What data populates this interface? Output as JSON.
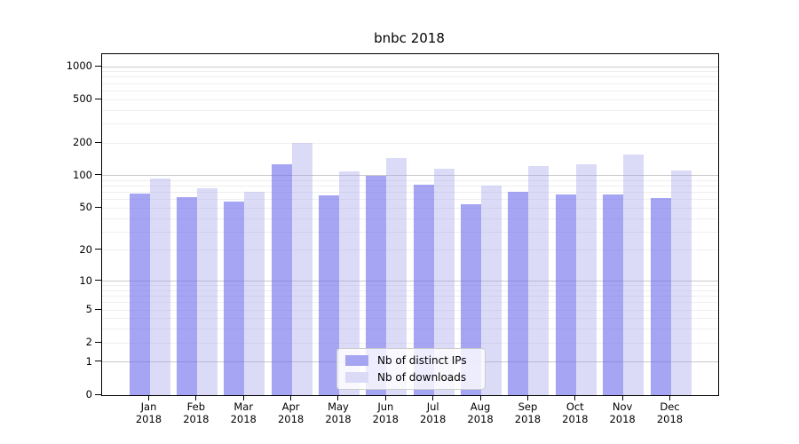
{
  "chart_data": {
    "type": "bar",
    "title": "bnbc 2018",
    "categories": [
      "Jan",
      "Feb",
      "Mar",
      "Apr",
      "May",
      "Jun",
      "Jul",
      "Aug",
      "Sep",
      "Oct",
      "Nov",
      "Dec"
    ],
    "category_year": "2018",
    "series": [
      {
        "name": "Nb of distinct IPs",
        "color": "#a5a5f2",
        "fill": "rgba(110,110,235,0.62)",
        "values": [
          68,
          63,
          58,
          127,
          66,
          100,
          82,
          54,
          71,
          67,
          67,
          62
        ]
      },
      {
        "name": "Nb of downloads",
        "color": "#dbdbf7",
        "fill": "rgba(160,160,235,0.38)",
        "values": [
          95,
          77,
          71,
          200,
          110,
          146,
          115,
          81,
          123,
          127,
          156,
          112
        ]
      }
    ],
    "xlabel": "",
    "ylabel": "",
    "y_scale": "log1p",
    "ylim": [
      0,
      1300
    ],
    "y_ticks": [
      0,
      1,
      2,
      5,
      10,
      20,
      50,
      100,
      200,
      500,
      1000
    ],
    "grid": {
      "major_values": [
        1,
        10,
        100,
        1000
      ],
      "minor_values": [
        2,
        3,
        4,
        5,
        6,
        7,
        8,
        9,
        20,
        30,
        40,
        50,
        60,
        70,
        80,
        90,
        200,
        300,
        400,
        500,
        600,
        700,
        800,
        900
      ],
      "major_color": "#c9c9c9",
      "minor_color": "#efefef"
    },
    "legend_position": "lower center"
  }
}
